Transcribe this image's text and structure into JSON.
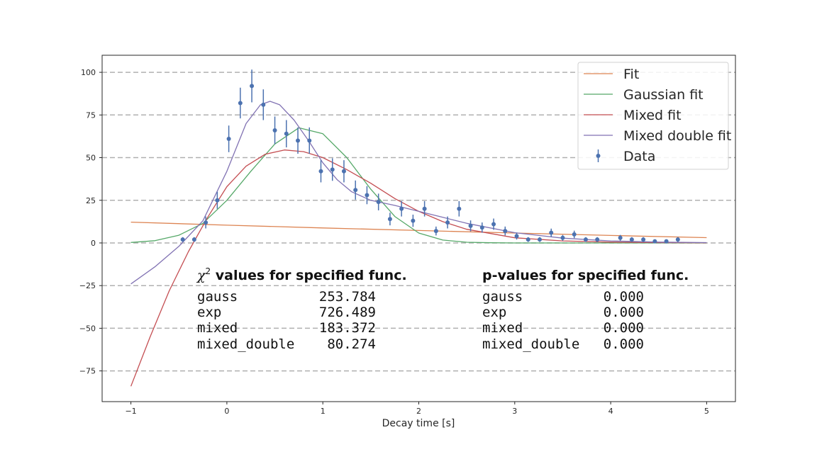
{
  "chart_data": {
    "type": "scatter",
    "xlabel": "Decay time [s]",
    "ylabel": "",
    "xlim": [
      -1.3,
      5.3
    ],
    "ylim": [
      -93,
      110
    ],
    "xticks": [
      -1,
      0,
      1,
      2,
      3,
      4,
      5
    ],
    "xtick_labels": [
      "−1",
      "0",
      "1",
      "2",
      "3",
      "4",
      "5"
    ],
    "yticks": [
      -75,
      -50,
      -25,
      0,
      25,
      50,
      75,
      100
    ],
    "ytick_labels": [
      "−75",
      "−50",
      "−25",
      "0",
      "25",
      "50",
      "75",
      "100"
    ],
    "grid": "horizontal dashed",
    "legend_position": "top-right",
    "series": [
      {
        "name": "Fit",
        "kind": "line",
        "color": "#dd8452",
        "x": [
          -1,
          0,
          1,
          2,
          3,
          4,
          5
        ],
        "y": [
          12.2,
          10.4,
          8.8,
          7.3,
          5.8,
          4.4,
          3.1
        ]
      },
      {
        "name": "Gaussian fit",
        "kind": "line",
        "color": "#55a868",
        "x": [
          -1,
          -0.75,
          -0.5,
          -0.25,
          0,
          0.25,
          0.5,
          0.75,
          1,
          1.25,
          1.5,
          1.75,
          2,
          2.25,
          2.5,
          2.75,
          3,
          3.5,
          4,
          5
        ],
        "y": [
          0.3,
          1.3,
          4.5,
          11.5,
          25,
          42,
          58,
          67.5,
          64,
          50,
          31.5,
          15.5,
          5.8,
          1.7,
          0.4,
          0.1,
          0,
          0,
          0,
          0
        ]
      },
      {
        "name": "Mixed fit",
        "kind": "line",
        "color": "#c44e52",
        "x": [
          -1,
          -0.8,
          -0.6,
          -0.4,
          -0.2,
          0,
          0.2,
          0.4,
          0.6,
          0.8,
          1,
          1.25,
          1.5,
          1.75,
          2,
          2.25,
          2.5,
          3,
          3.5,
          4,
          4.5,
          5
        ],
        "y": [
          -84,
          -55,
          -28,
          -5,
          15,
          33,
          45,
          52,
          54.5,
          53.5,
          50,
          43,
          35,
          26,
          18.5,
          12.5,
          8,
          3,
          1.2,
          0.5,
          0.2,
          0.1
        ]
      },
      {
        "name": "Mixed double fit",
        "kind": "line",
        "color": "#8172b3",
        "x": [
          -1,
          -0.75,
          -0.5,
          -0.25,
          0,
          0.2,
          0.35,
          0.45,
          0.55,
          0.7,
          0.85,
          1,
          1.15,
          1.3,
          1.5,
          1.75,
          2,
          2.25,
          2.5,
          3,
          3.5,
          4,
          4.5,
          5
        ],
        "y": [
          -24,
          -14,
          -2,
          13,
          42,
          70,
          81,
          83,
          81,
          72,
          60,
          47,
          37,
          30,
          25,
          22,
          18.5,
          15,
          11.5,
          6,
          2.8,
          1.2,
          0.5,
          0.2
        ]
      },
      {
        "name": "Data",
        "kind": "errorbar",
        "color": "#4c72b0",
        "x": [
          -0.46,
          -0.34,
          -0.22,
          -0.1,
          0.02,
          0.14,
          0.26,
          0.38,
          0.5,
          0.62,
          0.74,
          0.86,
          0.98,
          1.1,
          1.22,
          1.34,
          1.46,
          1.58,
          1.7,
          1.82,
          1.94,
          2.06,
          2.18,
          2.3,
          2.42,
          2.54,
          2.66,
          2.78,
          2.9,
          3.02,
          3.14,
          3.26,
          3.38,
          3.5,
          3.62,
          3.74,
          3.86,
          4.1,
          4.22,
          4.34,
          4.46,
          4.58,
          4.7
        ],
        "y": [
          2,
          2,
          12,
          25,
          61,
          82,
          92,
          81,
          66,
          64,
          60,
          60,
          42,
          43,
          42,
          31,
          28,
          24,
          14,
          20,
          13,
          20,
          7,
          12,
          20,
          10,
          9,
          11,
          7,
          4,
          2,
          2,
          6,
          3,
          5,
          2,
          2,
          3,
          2,
          2,
          1,
          1,
          2
        ],
        "yerr": [
          1.4,
          1.4,
          3.5,
          5,
          7.8,
          9,
          9.6,
          9,
          8.1,
          8,
          7.7,
          7.7,
          6.5,
          6.6,
          6.5,
          5.6,
          5.3,
          4.9,
          3.7,
          4.5,
          3.6,
          4.5,
          2.6,
          3.5,
          4.5,
          3.2,
          3,
          3.3,
          2.6,
          2,
          1.4,
          1.4,
          2.4,
          1.7,
          2.2,
          1.4,
          1.4,
          1.7,
          1.4,
          1.4,
          1,
          1,
          1.4
        ]
      }
    ],
    "annotations": {
      "chi2_title_symbol": "χ",
      "chi2_title_sup": "2",
      "chi2_title_rest": " values for specified func.",
      "chi2_rows": [
        {
          "name": "gauss",
          "value": "253.784"
        },
        {
          "name": "exp",
          "value": "726.489"
        },
        {
          "name": "mixed",
          "value": "183.372"
        },
        {
          "name": "mixed_double",
          "value": "80.274"
        }
      ],
      "p_title": "p-values for specified func.",
      "p_rows": [
        {
          "name": "gauss",
          "value": "0.000"
        },
        {
          "name": "exp",
          "value": "0.000"
        },
        {
          "name": "mixed",
          "value": "0.000"
        },
        {
          "name": "mixed_double",
          "value": "0.000"
        }
      ]
    }
  }
}
